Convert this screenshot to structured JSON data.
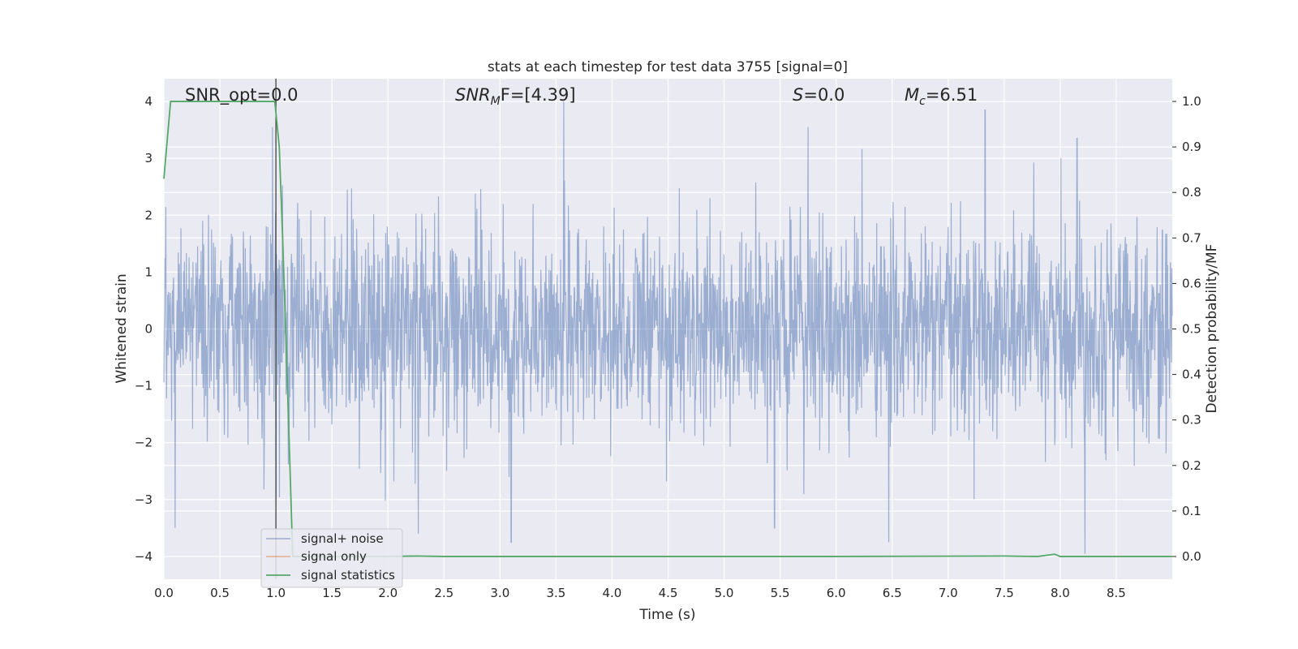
{
  "chart_data": {
    "type": "line",
    "title": "stats at each timestep for test data 3755 [signal=0]",
    "xlabel": "Time (s)",
    "ylabel": "Whitened strain",
    "y2label": "Detection probability/MF",
    "xlim": [
      0.0,
      9.0
    ],
    "ylim": [
      -4.4,
      4.4
    ],
    "y2lim": [
      -0.05,
      1.05
    ],
    "xticks": [
      "0.0",
      "0.5",
      "1.0",
      "1.5",
      "2.0",
      "2.5",
      "3.0",
      "3.5",
      "4.0",
      "4.5",
      "5.0",
      "5.5",
      "6.0",
      "6.5",
      "7.0",
      "7.5",
      "8.0",
      "8.5"
    ],
    "yticks": [
      "−4",
      "−3",
      "−2",
      "−1",
      "0",
      "1",
      "2",
      "3",
      "4"
    ],
    "y2ticks": [
      "0.0",
      "0.1",
      "0.2",
      "0.3",
      "0.4",
      "0.5",
      "0.6",
      "0.7",
      "0.8",
      "0.9",
      "1.0"
    ],
    "grid": true,
    "legend_position": "lower-left",
    "legend": [
      "signal+ noise",
      "signal only",
      "signal statistics"
    ],
    "annotations": {
      "snr_opt": "SNR_opt=0.0",
      "snr_mf_label": "SNR",
      "snr_mf_sub": "M",
      "snr_mf_rest": "F=[4.39]",
      "s_label": "S",
      "s_rest": "=0.0",
      "mc_label": "M",
      "mc_sub": "c",
      "mc_rest": "=6.51"
    },
    "marker_line_x": 1.0,
    "series": [
      {
        "name": "signal+ noise",
        "color": "#4c72b0",
        "description_range": [
          -4.0,
          4.0
        ],
        "noise_std": 0.9,
        "peaks": [
          {
            "x": 0.1,
            "y": -3.5
          },
          {
            "x": 0.97,
            "y": 3.55
          },
          {
            "x": 1.0,
            "y": -2.95
          },
          {
            "x": 3.1,
            "y": -3.75
          },
          {
            "x": 3.57,
            "y": 4.0
          },
          {
            "x": 5.75,
            "y": 3.55
          },
          {
            "x": 6.47,
            "y": -3.75
          },
          {
            "x": 7.33,
            "y": 3.85
          },
          {
            "x": 8.22,
            "y": -3.95
          },
          {
            "x": 8.15,
            "y": 3.35
          },
          {
            "x": 5.45,
            "y": -3.5
          },
          {
            "x": 2.27,
            "y": -3.6
          }
        ]
      },
      {
        "name": "signal only",
        "color": "#dd8452",
        "values": []
      },
      {
        "name": "signal statistics",
        "color": "#55a868",
        "x": [
          0.0,
          0.06,
          0.12,
          0.5,
          0.99,
          1.03,
          1.06,
          1.1,
          1.15,
          1.3,
          2.0,
          2.25,
          2.5,
          4.0,
          6.0,
          7.5,
          7.8,
          7.95,
          8.0,
          9.0
        ],
        "y": [
          0.83,
          1.0,
          1.0,
          1.0,
          1.0,
          0.9,
          0.7,
          0.4,
          0.0,
          0.0,
          0.0,
          0.001,
          0.0,
          0.0,
          0.0,
          0.001,
          0.0,
          0.005,
          0.0,
          0.0
        ]
      }
    ]
  }
}
